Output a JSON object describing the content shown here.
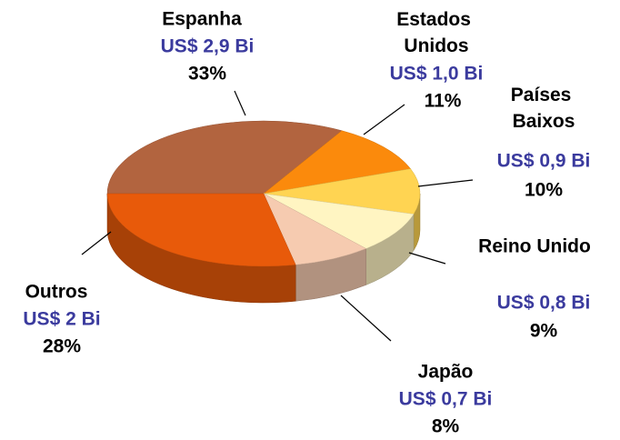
{
  "chart_data": {
    "type": "pie",
    "categories": [
      "Espanha",
      "Estados Unidos",
      "Países Baixos",
      "Reino Unido",
      "Japão",
      "Outros"
    ],
    "amount_labels": [
      "US$ 2,9 Bi",
      "US$ 1,0 Bi",
      "US$ 0,9 Bi",
      "US$ 0,8 Bi",
      "US$ 0,7 Bi",
      "US$ 2 Bi"
    ],
    "values": [
      33,
      11,
      10,
      9,
      8,
      28
    ],
    "value_labels": [
      "33%",
      "11%",
      "10%",
      "9%",
      "8%",
      "28%"
    ],
    "colors": [
      "#b2643f",
      "#fb8a0c",
      "#ffd452",
      "#fff5c2",
      "#f6cbb0",
      "#e85a0a"
    ]
  }
}
